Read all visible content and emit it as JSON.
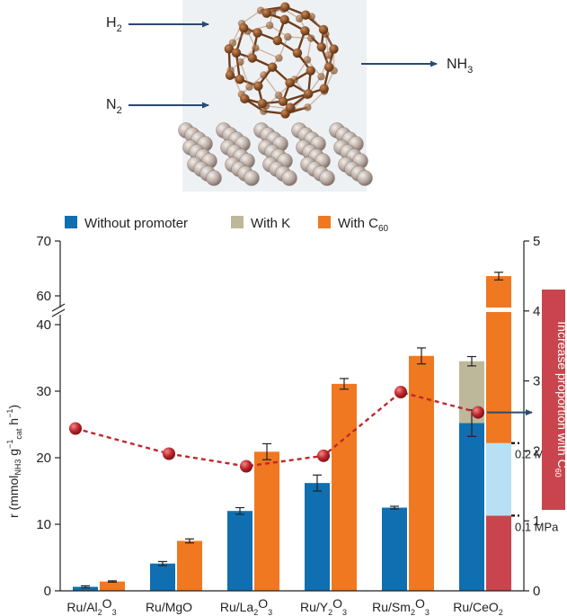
{
  "schematic": {
    "reactant_1": "H",
    "reactant_1_sub": "2",
    "reactant_2": "N",
    "reactant_2_sub": "2",
    "product": "NH",
    "product_sub": "3"
  },
  "chart_data": {
    "type": "bar",
    "categories": [
      {
        "base": "Ru/Al",
        "sub1": "2",
        "mid": "O",
        "sub2": "3"
      },
      {
        "base": "Ru/MgO",
        "sub1": "",
        "mid": "",
        "sub2": ""
      },
      {
        "base": "Ru/La",
        "sub1": "2",
        "mid": "O",
        "sub2": "3"
      },
      {
        "base": "Ru/Y",
        "sub1": "2",
        "mid": "O",
        "sub2": "3"
      },
      {
        "base": "Ru/Sm",
        "sub1": "2",
        "mid": "O",
        "sub2": "3"
      },
      {
        "base": "Ru/CeO",
        "sub1": "2",
        "mid": "",
        "sub2": ""
      }
    ],
    "legend": {
      "without": "Without promoter",
      "with_k": "With K",
      "with_c60": "With C",
      "with_c60_sub": "60"
    },
    "series": [
      {
        "key": "without",
        "values": [
          0.6,
          4.1,
          12.0,
          16.2,
          12.5,
          25.2
        ],
        "errors": [
          0.15,
          0.3,
          0.5,
          1.2,
          0.2,
          2.0
        ],
        "color": "#0f6fb0"
      },
      {
        "key": "with_k",
        "values": [
          null,
          null,
          null,
          null,
          null,
          34.5
        ],
        "errors": [
          null,
          null,
          null,
          null,
          null,
          0.7
        ],
        "color": "#bdb89a"
      },
      {
        "key": "with_c60",
        "values": [
          1.4,
          7.5,
          20.9,
          31.1,
          35.3,
          63.6
        ],
        "errors": [
          0.1,
          0.3,
          1.2,
          0.8,
          1.2,
          0.7
        ],
        "color": "#f07820"
      }
    ],
    "ceo2_pressure_segments": [
      {
        "label": "0.1 MPa",
        "top": 11.3,
        "color": "#c9444c"
      },
      {
        "label": "0.2 MPa",
        "top": 22.2,
        "color": "#b8e0f4"
      }
    ],
    "increase_proportion": {
      "ylabel": "Increase proportion with C",
      "ylabel_sub": "60",
      "values": [
        2.32,
        1.96,
        1.78,
        1.93,
        2.84,
        2.55
      ],
      "color": "#c0272d",
      "ylim": [
        0,
        5
      ],
      "yticks": [
        0,
        1,
        2,
        3,
        4,
        5
      ]
    },
    "ylabel": {
      "a": "r (mmol",
      "sub1": "NH3",
      "b": " g",
      "sup1": "−1",
      "sub2": "cat",
      "c": " h",
      "sup2": "−1",
      "d": ")"
    },
    "y_lower_range": [
      0,
      40
    ],
    "y_upper_range": [
      60,
      70
    ],
    "y_lower_ticks": [
      "0",
      "10",
      "20",
      "30",
      "40"
    ],
    "y_upper_ticks": [
      "60",
      "70"
    ]
  }
}
